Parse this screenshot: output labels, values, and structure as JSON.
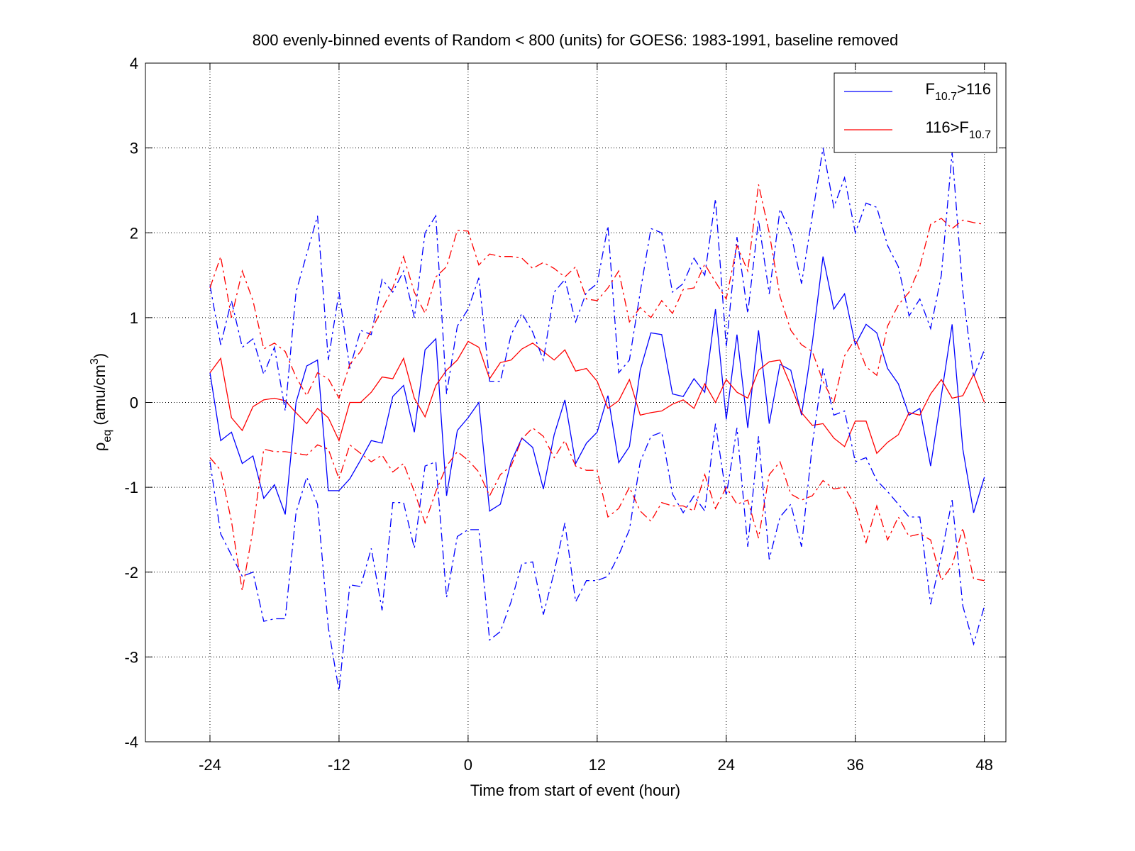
{
  "chart_data": {
    "type": "line",
    "title": "800 evenly-binned events of Random < 800 (units) for GOES6: 1983-1991, baseline removed",
    "xlabel": "Time from start of event (hour)",
    "ylabel": [
      {
        "text": "ρ"
      },
      {
        "text": "eq",
        "sub": true
      },
      {
        "text": " (amu/cm"
      },
      {
        "text": "3",
        "sup": true
      },
      {
        "text": ")"
      }
    ],
    "x": [
      -24,
      -23,
      -22,
      -21,
      -20,
      -19,
      -18,
      -17,
      -16,
      -15,
      -14,
      -13,
      -12,
      -11,
      -10,
      -9,
      -8,
      -7,
      -6,
      -5,
      -4,
      -3,
      -2,
      -1,
      0,
      1,
      2,
      3,
      4,
      5,
      6,
      7,
      8,
      9,
      10,
      11,
      12,
      13,
      14,
      15,
      16,
      17,
      18,
      19,
      20,
      21,
      22,
      23,
      24,
      25,
      26,
      27,
      28,
      29,
      30,
      31,
      32,
      33,
      34,
      35,
      36,
      37,
      38,
      39,
      40,
      41,
      42,
      43,
      44,
      45,
      46,
      47,
      48
    ],
    "series": [
      {
        "name": [
          {
            "text": "F"
          },
          {
            "text": "10.7",
            "sub": true
          },
          {
            "text": ">116"
          }
        ],
        "color": "#0000ff",
        "style": "solid",
        "values": [
          0.35,
          -0.45,
          -0.35,
          -0.72,
          -0.63,
          -1.13,
          -0.97,
          -1.32,
          0.0,
          0.43,
          0.5,
          -1.04,
          -1.04,
          -0.9,
          -0.68,
          -0.45,
          -0.48,
          0.07,
          0.2,
          -0.35,
          0.62,
          0.75,
          -1.1,
          -0.33,
          -0.18,
          0.0,
          -1.28,
          -1.2,
          -0.7,
          -0.42,
          -0.53,
          -1.02,
          -0.38,
          0.03,
          -0.72,
          -0.48,
          -0.35,
          0.08,
          -0.71,
          -0.52,
          0.38,
          0.82,
          0.8,
          0.1,
          0.07,
          0.28,
          0.12,
          1.1,
          -0.2,
          0.8,
          -0.3,
          0.85,
          -0.25,
          0.45,
          0.38,
          -0.15,
          0.7,
          1.72,
          1.1,
          1.28,
          0.68,
          0.92,
          0.82,
          0.4,
          0.22,
          -0.15,
          -0.07,
          -0.75,
          0.08,
          0.92,
          -0.55,
          -1.3,
          -0.88
        ]
      },
      {
        "name": [
          {
            "text": "116>F"
          },
          {
            "text": "10.7",
            "sub": true
          }
        ],
        "color": "#ff0000",
        "style": "solid",
        "values": [
          0.35,
          0.52,
          -0.18,
          -0.33,
          -0.05,
          0.03,
          0.05,
          0.02,
          -0.12,
          -0.25,
          -0.07,
          -0.18,
          -0.45,
          0.0,
          0.0,
          0.12,
          0.3,
          0.28,
          0.52,
          0.05,
          -0.17,
          0.2,
          0.38,
          0.5,
          0.72,
          0.65,
          0.28,
          0.47,
          0.5,
          0.63,
          0.7,
          0.6,
          0.5,
          0.62,
          0.37,
          0.4,
          0.25,
          -0.07,
          0.02,
          0.27,
          -0.15,
          -0.12,
          -0.1,
          -0.02,
          0.03,
          -0.07,
          0.22,
          0.0,
          0.27,
          0.12,
          0.05,
          0.38,
          0.48,
          0.5,
          0.2,
          -0.12,
          -0.27,
          -0.25,
          -0.42,
          -0.52,
          -0.22,
          -0.22,
          -0.6,
          -0.47,
          -0.38,
          -0.12,
          -0.15,
          0.1,
          0.27,
          0.05,
          0.08,
          0.33,
          0.0
        ]
      },
      {
        "color": "#0000ff",
        "style": "dashdot",
        "values": [
          1.38,
          0.68,
          1.2,
          0.65,
          0.75,
          0.33,
          0.65,
          -0.1,
          1.3,
          1.75,
          2.2,
          0.5,
          1.3,
          0.4,
          0.85,
          0.8,
          1.45,
          1.3,
          1.55,
          1.0,
          2.0,
          2.2,
          0.1,
          0.9,
          1.1,
          1.47,
          0.25,
          0.25,
          0.8,
          1.05,
          0.83,
          0.5,
          1.3,
          1.45,
          0.95,
          1.3,
          1.4,
          2.08,
          0.35,
          0.5,
          1.3,
          2.05,
          2.0,
          1.3,
          1.4,
          1.7,
          1.5,
          2.4,
          0.65,
          1.95,
          1.05,
          2.15,
          1.28,
          2.28,
          2.0,
          1.4,
          2.2,
          3.0,
          2.3,
          2.65,
          2.0,
          2.35,
          2.3,
          1.85,
          1.6,
          1.02,
          1.22,
          0.87,
          1.5,
          2.95,
          1.3,
          0.3,
          0.62
        ]
      },
      {
        "color": "#0000ff",
        "style": "dashdot",
        "values": [
          -0.7,
          -1.55,
          -1.8,
          -2.05,
          -2.0,
          -2.58,
          -2.55,
          -2.55,
          -1.3,
          -0.88,
          -1.2,
          -2.65,
          -3.4,
          -2.15,
          -2.17,
          -1.72,
          -2.45,
          -1.18,
          -1.18,
          -1.72,
          -0.75,
          -0.7,
          -2.3,
          -1.58,
          -1.5,
          -1.5,
          -2.8,
          -2.7,
          -2.35,
          -1.9,
          -1.88,
          -2.5,
          -2.0,
          -1.42,
          -2.35,
          -2.1,
          -2.1,
          -2.05,
          -1.8,
          -1.5,
          -0.7,
          -0.4,
          -0.35,
          -1.08,
          -1.3,
          -1.1,
          -1.28,
          -0.25,
          -1.1,
          -0.3,
          -1.7,
          -0.4,
          -1.85,
          -1.35,
          -1.2,
          -1.7,
          -0.5,
          0.4,
          -0.15,
          -0.1,
          -0.7,
          -0.65,
          -0.92,
          -1.05,
          -1.2,
          -1.35,
          -1.35,
          -2.38,
          -1.8,
          -1.15,
          -2.4,
          -2.85,
          -2.4
        ]
      },
      {
        "color": "#ff0000",
        "style": "dashdot",
        "values": [
          1.35,
          1.72,
          1.0,
          1.55,
          1.2,
          0.63,
          0.7,
          0.6,
          0.3,
          0.08,
          0.35,
          0.28,
          0.05,
          0.45,
          0.6,
          0.85,
          1.1,
          1.35,
          1.72,
          1.3,
          1.05,
          1.48,
          1.6,
          2.03,
          2.02,
          1.62,
          1.75,
          1.72,
          1.72,
          1.7,
          1.58,
          1.65,
          1.58,
          1.48,
          1.6,
          1.22,
          1.2,
          1.35,
          1.55,
          0.95,
          1.12,
          1.0,
          1.2,
          1.05,
          1.33,
          1.35,
          1.63,
          1.42,
          1.22,
          1.85,
          1.55,
          2.57,
          2.0,
          1.25,
          0.85,
          0.68,
          0.6,
          0.25,
          0.0,
          0.55,
          0.75,
          0.42,
          0.32,
          0.9,
          1.15,
          1.3,
          1.6,
          2.1,
          2.17,
          2.05,
          2.15,
          2.12,
          2.1
        ]
      },
      {
        "color": "#ff0000",
        "style": "dashdot",
        "values": [
          -0.65,
          -0.8,
          -1.4,
          -2.22,
          -1.5,
          -0.55,
          -0.58,
          -0.58,
          -0.6,
          -0.62,
          -0.5,
          -0.55,
          -0.9,
          -0.5,
          -0.6,
          -0.7,
          -0.62,
          -0.82,
          -0.72,
          -1.05,
          -1.42,
          -1.05,
          -0.75,
          -0.58,
          -0.68,
          -0.82,
          -1.1,
          -0.85,
          -0.75,
          -0.43,
          -0.3,
          -0.4,
          -0.65,
          -0.45,
          -0.75,
          -0.8,
          -0.8,
          -1.35,
          -1.25,
          -1.0,
          -1.28,
          -1.4,
          -1.18,
          -1.22,
          -1.22,
          -1.28,
          -0.85,
          -1.25,
          -1.0,
          -1.2,
          -1.15,
          -1.6,
          -0.85,
          -0.7,
          -1.08,
          -1.15,
          -1.1,
          -0.92,
          -1.02,
          -1.0,
          -1.22,
          -1.65,
          -1.22,
          -1.62,
          -1.35,
          -1.58,
          -1.55,
          -1.62,
          -2.1,
          -1.92,
          -1.48,
          -2.08,
          -2.1
        ]
      }
    ],
    "xlim": [
      -30,
      50
    ],
    "xticks": [
      -24,
      -12,
      0,
      12,
      24,
      36,
      48
    ],
    "ylim": [
      -4,
      4
    ],
    "yticks": [
      -4,
      -3,
      -2,
      -1,
      0,
      1,
      2,
      3,
      4
    ],
    "grid": true,
    "legend": "upper right"
  }
}
